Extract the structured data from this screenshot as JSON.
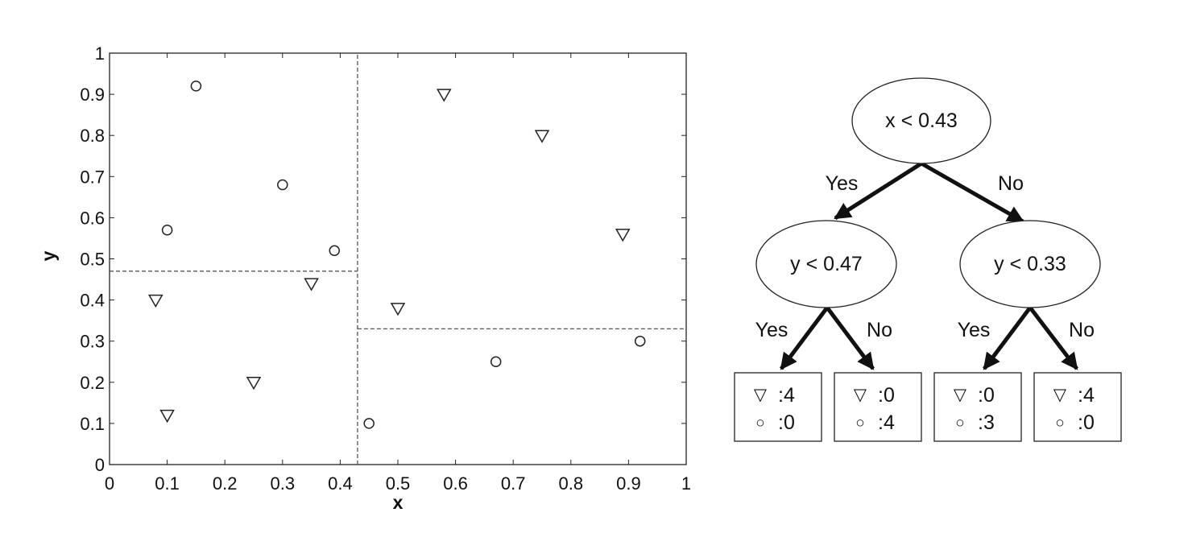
{
  "chart_data": {
    "type": "scatter",
    "title": "",
    "xlabel": "x",
    "ylabel": "y",
    "xlim": [
      0,
      1
    ],
    "ylim": [
      0,
      1
    ],
    "grid": false,
    "x_ticks": [
      "0",
      "0.1",
      "0.2",
      "0.3",
      "0.4",
      "0.5",
      "0.6",
      "0.7",
      "0.8",
      "0.9",
      "1"
    ],
    "y_ticks": [
      "0",
      "0.1",
      "0.2",
      "0.3",
      "0.4",
      "0.5",
      "0.6",
      "0.7",
      "0.8",
      "0.9",
      "1"
    ],
    "x_tick_values": [
      0,
      0.1,
      0.2,
      0.3,
      0.4,
      0.5,
      0.6,
      0.7,
      0.8,
      0.9,
      1
    ],
    "y_tick_values": [
      0,
      0.1,
      0.2,
      0.3,
      0.4,
      0.5,
      0.6,
      0.7,
      0.8,
      0.9,
      1
    ],
    "series": [
      {
        "name": "triangle",
        "marker": "triangle-down",
        "points": [
          {
            "x": 0.08,
            "y": 0.4
          },
          {
            "x": 0.1,
            "y": 0.12
          },
          {
            "x": 0.25,
            "y": 0.2
          },
          {
            "x": 0.35,
            "y": 0.44
          },
          {
            "x": 0.5,
            "y": 0.38
          },
          {
            "x": 0.58,
            "y": 0.9
          },
          {
            "x": 0.75,
            "y": 0.8
          },
          {
            "x": 0.89,
            "y": 0.56
          }
        ]
      },
      {
        "name": "circle",
        "marker": "circle",
        "points": [
          {
            "x": 0.15,
            "y": 0.92
          },
          {
            "x": 0.1,
            "y": 0.57
          },
          {
            "x": 0.3,
            "y": 0.68
          },
          {
            "x": 0.39,
            "y": 0.52
          },
          {
            "x": 0.45,
            "y": 0.1
          },
          {
            "x": 0.67,
            "y": 0.25
          },
          {
            "x": 0.92,
            "y": 0.3
          }
        ]
      }
    ],
    "splits": [
      {
        "name": "x-split",
        "orientation": "vertical",
        "value": 0.43,
        "from": 0,
        "to": 1
      },
      {
        "name": "y-split-left",
        "orientation": "horizontal",
        "value": 0.47,
        "from": 0,
        "to": 0.43
      },
      {
        "name": "y-split-right",
        "orientation": "horizontal",
        "value": 0.33,
        "from": 0.43,
        "to": 1
      }
    ]
  },
  "tree": {
    "root": "x < 0.43",
    "yes_label": "Yes",
    "no_label": "No",
    "left_node": "y < 0.47",
    "right_node": "y < 0.33",
    "triangle_glyph": "▽",
    "circle_glyph": "○",
    "leaves": [
      {
        "triangle": ":4",
        "circle": ":0"
      },
      {
        "triangle": ":0",
        "circle": ":4"
      },
      {
        "triangle": ":0",
        "circle": ":3"
      },
      {
        "triangle": ":4",
        "circle": ":0"
      }
    ]
  }
}
